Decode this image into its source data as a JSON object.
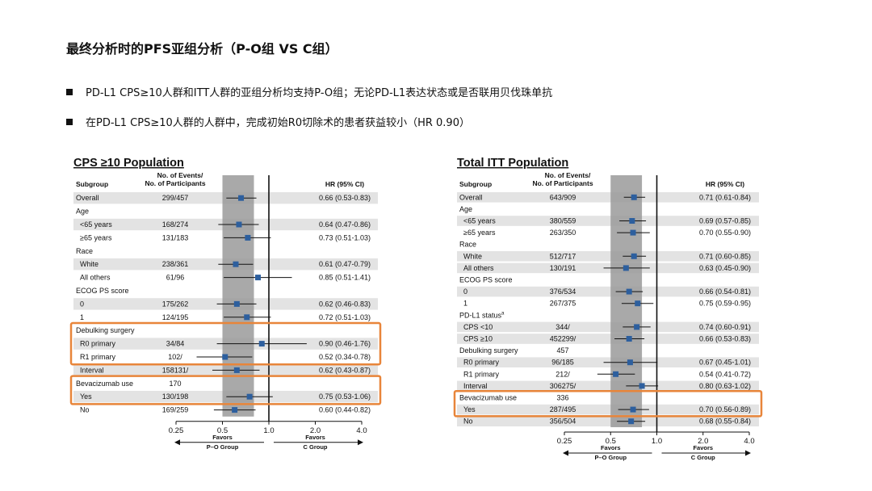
{
  "slide": {
    "title": "最终分析时的PFS亚组分析（P-O组 VS C组）",
    "bullets": [
      "PD-L1 CPS≥10人群和ITT人群的亚组分析均支持P-O组；无论PD-L1表达状态或是否联用贝伐珠单抗",
      "在PD-L1 CPS≥10人群的人群中，完成初始R0切除术的患者获益较小（HR 0.90）"
    ]
  },
  "colors": {
    "row_band": "#e3e3e3",
    "ci_band": "#9a9a9a",
    "marker": "#2d5f9e",
    "highlight_box": "#e8853a"
  },
  "chart_data": [
    {
      "type": "forest",
      "title": "CPS ≥10 Population",
      "columns": {
        "subgroup": "Subgroup",
        "events_line1": "No. of Events/",
        "events_line2": "No. of Participants",
        "hr": "HR (95% CI)"
      },
      "xscale": "log",
      "xlim": [
        0.25,
        4.0
      ],
      "xticks": [
        "0.25",
        "0.5",
        "1.0",
        "2.0",
        "4.0"
      ],
      "favors_left": [
        "Favors",
        "P–O Group"
      ],
      "favors_right": [
        "Favors",
        "C Group"
      ],
      "rows": [
        {
          "label": "Overall",
          "n": "299/457",
          "hr_text": "0.66 (0.53-0.83)",
          "hr": 0.66,
          "lo": 0.53,
          "hi": 0.83,
          "band": true
        },
        {
          "label": "Age"
        },
        {
          "label": "<65 years",
          "indent": true,
          "n": "168/274",
          "hr_text": "0.64 (0.47-0.86)",
          "hr": 0.64,
          "lo": 0.47,
          "hi": 0.86,
          "band": true
        },
        {
          "label": "≥65 years",
          "indent": true,
          "n": "131/183",
          "hr_text": "0.73 (0.51-1.03)",
          "hr": 0.73,
          "lo": 0.51,
          "hi": 1.03
        },
        {
          "label": "Race"
        },
        {
          "label": "White",
          "indent": true,
          "n": "238/361",
          "hr_text": "0.61 (0.47-0.79)",
          "hr": 0.61,
          "lo": 0.47,
          "hi": 0.79,
          "band": true
        },
        {
          "label": "All others",
          "indent": true,
          "n": "61/96",
          "hr_text": "0.85 (0.51-1.41)",
          "hr": 0.85,
          "lo": 0.51,
          "hi": 1.41
        },
        {
          "label": "ECOG PS score"
        },
        {
          "label": "0",
          "indent": true,
          "n": "175/262",
          "hr_text": "0.62 (0.46-0.83)",
          "hr": 0.62,
          "lo": 0.46,
          "hi": 0.83,
          "band": true
        },
        {
          "label": "1",
          "indent": true,
          "n": "124/195",
          "hr_text": "0.72 (0.51-1.03)",
          "hr": 0.72,
          "lo": 0.51,
          "hi": 1.03
        },
        {
          "label": "Debulking surgery"
        },
        {
          "label": "R0 primary",
          "indent": true,
          "n": "34/84",
          "hr_text": "0.90 (0.46-1.76)",
          "hr": 0.9,
          "lo": 0.46,
          "hi": 1.76,
          "band": true
        },
        {
          "label": "R1 primary",
          "indent": true,
          "n": "102/",
          "hr_text": "0.52 (0.34-0.78)",
          "hr": 0.52,
          "lo": 0.34,
          "hi": 0.78
        },
        {
          "label": "Interval",
          "indent": true,
          "n": "158131/",
          "hr_text": "0.62 (0.43-0.87)",
          "hr": 0.62,
          "lo": 0.43,
          "hi": 0.87,
          "band": true
        },
        {
          "label": "Bevacizumab use",
          "n": "170"
        },
        {
          "label": "Yes",
          "indent": true,
          "n": "130/198",
          "hr_text": "0.75 (0.53-1.06)",
          "hr": 0.75,
          "lo": 0.53,
          "hi": 1.06,
          "band": true
        },
        {
          "label": "No",
          "indent": true,
          "n": "169/259",
          "hr_text": "0.60 (0.44-0.82)",
          "hr": 0.6,
          "lo": 0.44,
          "hi": 0.82
        }
      ],
      "highlight_groups": [
        [
          10,
          13
        ],
        [
          14,
          16
        ]
      ]
    },
    {
      "type": "forest",
      "title": "Total ITT Population",
      "columns": {
        "subgroup": "Subgroup",
        "events_line1": "No. of Events/",
        "events_line2": "No. of Participants",
        "hr": "HR (95% CI)"
      },
      "xscale": "log",
      "xlim": [
        0.25,
        4.0
      ],
      "xticks": [
        "0.25",
        "0.5",
        "1.0",
        "2.0",
        "4.0"
      ],
      "favors_left": [
        "Favors",
        "P–O Group"
      ],
      "favors_right": [
        "Favors",
        "C Group"
      ],
      "rows": [
        {
          "label": "Overall",
          "n": "643/909",
          "hr_text": "0.71 (0.61-0.84)",
          "hr": 0.71,
          "lo": 0.61,
          "hi": 0.84,
          "band": true
        },
        {
          "label": "Age"
        },
        {
          "label": "<65 years",
          "indent": true,
          "n": "380/559",
          "hr_text": "0.69 (0.57-0.85)",
          "hr": 0.69,
          "lo": 0.57,
          "hi": 0.85,
          "band": true
        },
        {
          "label": "≥65 years",
          "indent": true,
          "n": "263/350",
          "hr_text": "0.70 (0.55-0.90)",
          "hr": 0.7,
          "lo": 0.55,
          "hi": 0.9
        },
        {
          "label": "Race"
        },
        {
          "label": "White",
          "indent": true,
          "n": "512/717",
          "hr_text": "0.71 (0.60-0.85)",
          "hr": 0.71,
          "lo": 0.6,
          "hi": 0.85,
          "band": true
        },
        {
          "label": "All others",
          "indent": true,
          "n": "130/191",
          "hr_text": "0.63 (0.45-0.90)",
          "hr": 0.63,
          "lo": 0.45,
          "hi": 0.9,
          "band": true
        },
        {
          "label": "ECOG PS score"
        },
        {
          "label": "0",
          "indent": true,
          "n": "376/534",
          "hr_text": "0.66 (0.54-0.81)",
          "hr": 0.66,
          "lo": 0.54,
          "hi": 0.81,
          "band": true
        },
        {
          "label": "1",
          "indent": true,
          "n": "267/375",
          "hr_text": "0.75 (0.59-0.95)",
          "hr": 0.75,
          "lo": 0.59,
          "hi": 0.95
        },
        {
          "label": "PD-L1 status",
          "sup": "a"
        },
        {
          "label": "CPS <10",
          "indent": true,
          "n": "344/",
          "hr_text": "0.74 (0.60-0.91)",
          "hr": 0.74,
          "lo": 0.6,
          "hi": 0.91,
          "band": true
        },
        {
          "label": "CPS ≥10",
          "indent": true,
          "n": "452299/",
          "hr_text": "0.66 (0.53-0.83)",
          "hr": 0.66,
          "lo": 0.53,
          "hi": 0.83,
          "band": true
        },
        {
          "label": "Debulking surgery",
          "n": "457"
        },
        {
          "label": "R0 primary",
          "indent": true,
          "n": "96/185",
          "hr_text": "0.67 (0.45-1.01)",
          "hr": 0.67,
          "lo": 0.45,
          "hi": 1.01,
          "band": true
        },
        {
          "label": "R1 primary",
          "indent": true,
          "n": "212/",
          "hr_text": "0.54 (0.41-0.72)",
          "hr": 0.54,
          "lo": 0.41,
          "hi": 0.72
        },
        {
          "label": "Interval",
          "indent": true,
          "n": "306275/",
          "hr_text": "0.80 (0.63-1.02)",
          "hr": 0.8,
          "lo": 0.63,
          "hi": 1.02,
          "band": true
        },
        {
          "label": "Bevacizumab use",
          "n": "336"
        },
        {
          "label": "Yes",
          "indent": true,
          "n": "287/495",
          "hr_text": "0.70 (0.56-0.89)",
          "hr": 0.7,
          "lo": 0.56,
          "hi": 0.89,
          "band": true
        },
        {
          "label": "No",
          "indent": true,
          "n": "356/504",
          "hr_text": "0.68 (0.55-0.84)",
          "hr": 0.68,
          "lo": 0.55,
          "hi": 0.84,
          "band": true
        }
      ],
      "highlight_groups": [
        [
          17,
          19
        ]
      ]
    }
  ]
}
